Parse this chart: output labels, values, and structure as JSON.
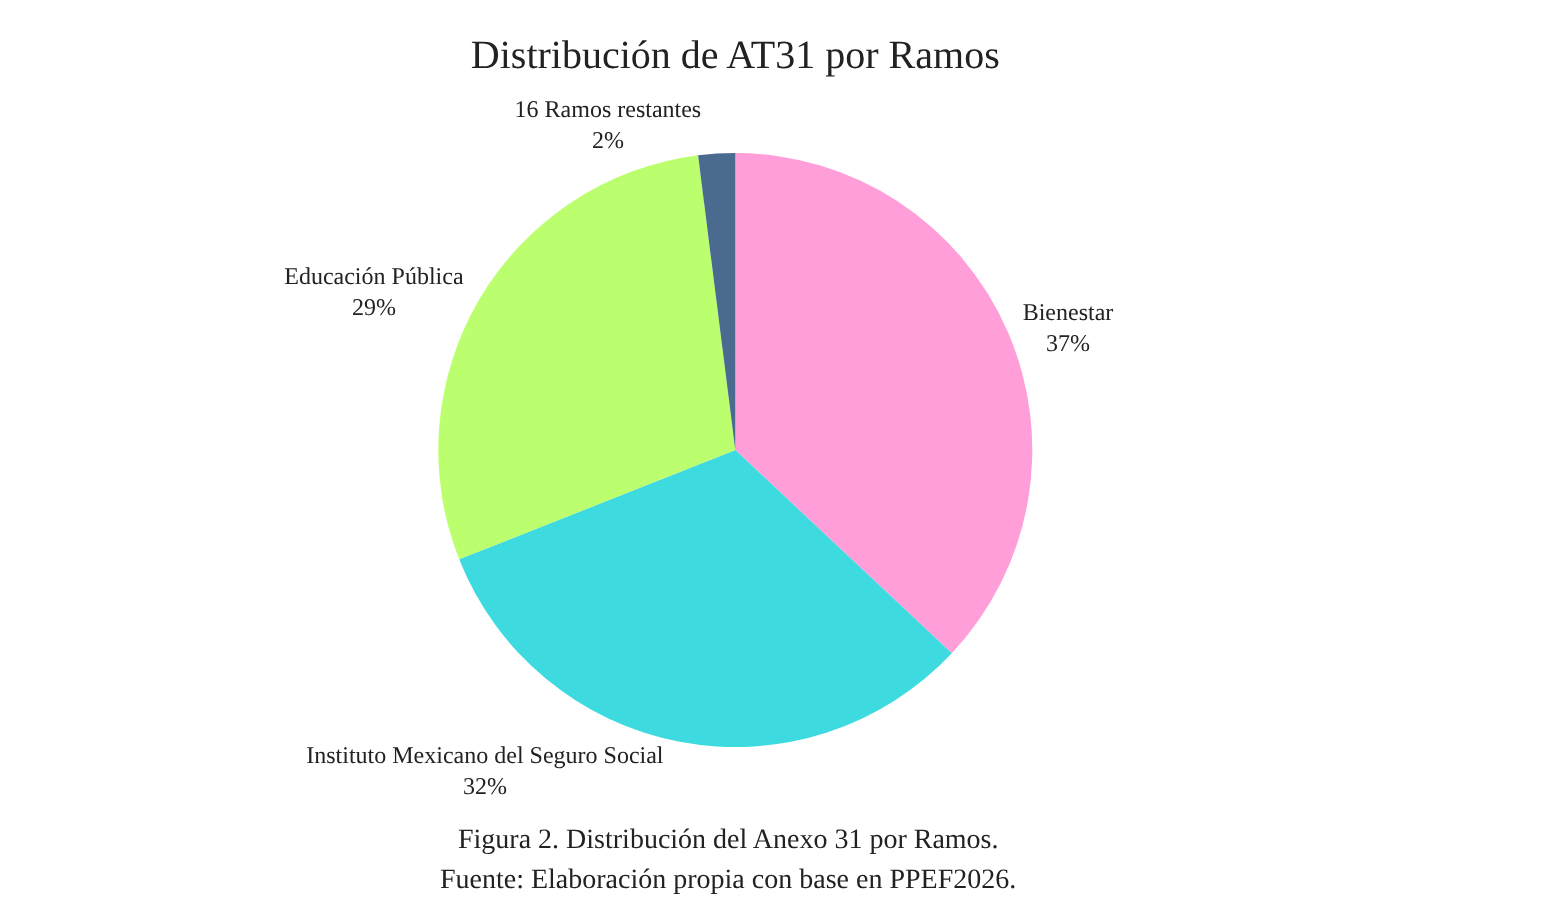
{
  "chart_data": {
    "type": "pie",
    "title": "Distribución de AT31 por Ramos",
    "categories": [
      "Bienestar",
      "Instituto Mexicano del Seguro Social",
      "Educación Pública",
      "16 Ramos restantes"
    ],
    "values": [
      37,
      32,
      29,
      2
    ],
    "value_labels": [
      "37%",
      "32%",
      "29%",
      "2%"
    ],
    "colors": [
      "#ff9ed8",
      "#3ddbe0",
      "#bbff6e",
      "#4a6a8f"
    ],
    "legend": false,
    "annotations": [
      "Figura 2. Distribución del Anexo 31 por Ramos.",
      "Fuente: Elaboración propia con base en PPEF2026."
    ]
  }
}
